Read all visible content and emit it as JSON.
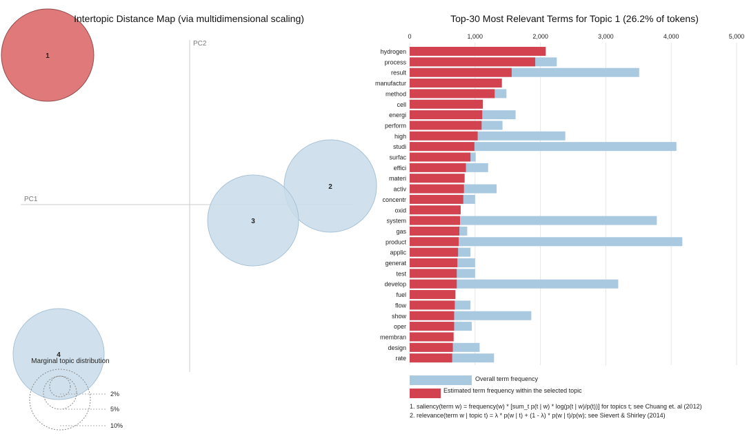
{
  "left_panel": {
    "title": "Intertopic Distance Map (via multidimensional scaling)",
    "axis_x_label": "PC1",
    "axis_y_label": "PC2",
    "marginal_title": "Marginal topic distribution",
    "marginal_levels": [
      "2%",
      "5%",
      "10%"
    ]
  },
  "right_panel": {
    "legend_overall": "Overall term frequency",
    "legend_estimated": "Estimated term frequency within the selected topic",
    "footnote_1": "1. saliency(term w) = frequency(w) * [sum_t p(t | w) * log(p(t | w)/p(t))] for topics t; see Chuang et. al (2012)",
    "footnote_2": "2. relevance(term w | topic t) = λ * p(w | t) + (1 - λ) * p(w | t)/p(w); see Sievert & Shirley (2014)"
  },
  "colors": {
    "selected_topic": "#e07a7a",
    "other_topic": "#c8dcea",
    "overall_bar": "#a9c9e1",
    "estimated_bar": "#d2434f",
    "grid": "#e6e6e6"
  },
  "chart_data": [
    {
      "type": "scatter",
      "title": "Intertopic Distance Map (via multidimensional scaling)",
      "xlabel": "PC1",
      "ylabel": "PC2",
      "points": [
        {
          "label": "1",
          "selected": true
        },
        {
          "label": "2",
          "selected": false
        },
        {
          "label": "3",
          "selected": false
        },
        {
          "label": "4",
          "selected": false
        }
      ]
    },
    {
      "type": "bar",
      "orientation": "horizontal",
      "title": "Top-30 Most Relevant Terms for Topic 1 (26.2% of tokens)",
      "xlim": [
        0,
        5000
      ],
      "ticks": [
        0,
        1000,
        2000,
        3000,
        4000,
        5000
      ],
      "tick_labels": [
        "0",
        "1,000",
        "2,000",
        "3,000",
        "4,000",
        "5,000"
      ],
      "categories": [
        "hydrogen",
        "process",
        "result",
        "manufactur",
        "method",
        "cell",
        "energi",
        "perform",
        "high",
        "studi",
        "surfac",
        "effici",
        "materi",
        "activ",
        "concentr",
        "oxid",
        "system",
        "gas",
        "product",
        "applic",
        "generat",
        "test",
        "develop",
        "fuel",
        "flow",
        "show",
        "oper",
        "membran",
        "design",
        "rate"
      ],
      "series": [
        {
          "name": "Overall term frequency",
          "values": [
            2080,
            2250,
            3510,
            1410,
            1480,
            1120,
            1620,
            1420,
            2380,
            4080,
            1010,
            1200,
            840,
            1330,
            1000,
            780,
            3780,
            880,
            4170,
            930,
            1000,
            1000,
            3190,
            700,
            930,
            1860,
            950,
            680,
            1070,
            1290
          ]
        },
        {
          "name": "Estimated term frequency within the selected topic",
          "values": [
            2080,
            1920,
            1560,
            1410,
            1300,
            1120,
            1110,
            1100,
            1040,
            990,
            930,
            860,
            840,
            830,
            820,
            780,
            770,
            760,
            750,
            740,
            730,
            720,
            720,
            700,
            690,
            680,
            680,
            670,
            660,
            650
          ]
        }
      ]
    }
  ]
}
